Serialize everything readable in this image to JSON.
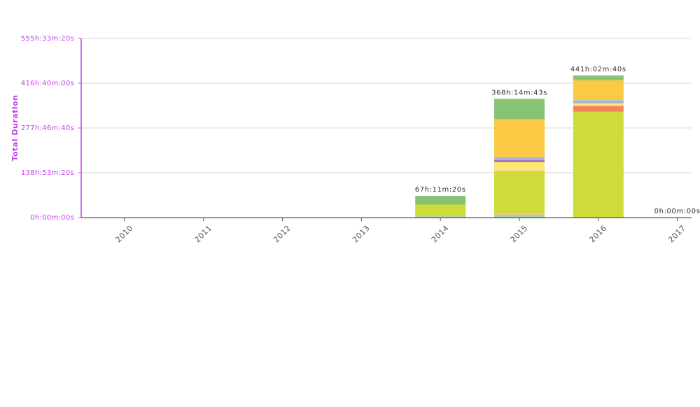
{
  "chart_data": {
    "type": "bar",
    "stacked": true,
    "title": "",
    "xlabel": "",
    "ylabel": "Total Duration",
    "ylim_seconds": [
      0,
      2000000
    ],
    "y_ticks": [
      "0h:00m:00s",
      "138h:53m:20s",
      "277h:46m:40s",
      "416h:40m:00s",
      "555h:33m:20s"
    ],
    "categories": [
      "2010",
      "2011",
      "2012",
      "2013",
      "2014",
      "2015",
      "2016",
      "2017"
    ],
    "totals_labels": [
      "",
      "",
      "",
      "",
      "67h:11m:20s",
      "368h:14m:43s",
      "441h:02m:40s",
      "0h:00m:00s"
    ],
    "totals_hours": [
      0,
      0,
      0,
      0,
      67.19,
      368.25,
      441.04,
      0
    ],
    "series": [
      {
        "name": "segment-light-green",
        "color": "#a8d5a0",
        "values_hours": [
          0,
          0,
          0,
          0,
          4,
          9,
          0,
          0
        ]
      },
      {
        "name": "segment-salmon-low",
        "color": "#f5b98a",
        "values_hours": [
          0,
          0,
          0,
          0,
          0,
          2,
          0,
          0
        ]
      },
      {
        "name": "segment-lime",
        "color": "#cddc39",
        "values_hours": [
          0,
          0,
          0,
          0,
          36.19,
          133,
          328.04,
          0
        ]
      },
      {
        "name": "segment-salmon",
        "color": "#f5b98a",
        "values_hours": [
          0,
          0,
          0,
          0,
          0,
          2,
          0,
          0
        ]
      },
      {
        "name": "segment-coral",
        "color": "#f4845f",
        "values_hours": [
          0,
          0,
          0,
          0,
          0,
          0,
          18,
          0
        ]
      },
      {
        "name": "segment-yellow",
        "color": "#fde774",
        "values_hours": [
          0,
          0,
          0,
          0,
          0,
          26,
          8,
          0
        ]
      },
      {
        "name": "segment-crimson",
        "color": "#c2456b",
        "values_hours": [
          0,
          0,
          0,
          0,
          0,
          3,
          0,
          0
        ]
      },
      {
        "name": "segment-purple",
        "color": "#9a7fc7",
        "values_hours": [
          0,
          0,
          0,
          0,
          0,
          3,
          0,
          0
        ]
      },
      {
        "name": "segment-blue",
        "color": "#a4b6e0",
        "values_hours": [
          0,
          0,
          0,
          0,
          0,
          9,
          10,
          0
        ]
      },
      {
        "name": "segment-orange",
        "color": "#fbc943",
        "values_hours": [
          0,
          0,
          0,
          0,
          0,
          118.25,
          62,
          0
        ]
      },
      {
        "name": "segment-green",
        "color": "#88c374",
        "values_hours": [
          0,
          0,
          0,
          0,
          27,
          63,
          15,
          0
        ]
      }
    ],
    "grid": true,
    "legend": "none"
  },
  "colors": {
    "axis_accent": "#c43cf0",
    "gridline": "#d9d9d9",
    "x_axis": "#555555"
  }
}
